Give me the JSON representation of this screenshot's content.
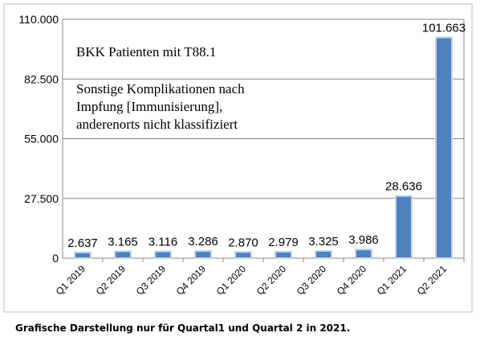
{
  "chart_data": {
    "type": "bar",
    "categories": [
      "Q1 2019",
      "Q2 2019",
      "Q3 2019",
      "Q4 2019",
      "Q1 2020",
      "Q2 2020",
      "Q3 2020",
      "Q4 2020",
      "Q1 2021",
      "Q2 2021"
    ],
    "values": [
      2637,
      3165,
      3116,
      3286,
      2870,
      2979,
      3325,
      3986,
      28636,
      101663
    ],
    "value_labels": [
      "2.637",
      "3.165",
      "3.116",
      "3.286",
      "2.870",
      "2.979",
      "3.325",
      "3.986",
      "28.636",
      "101.663"
    ],
    "color": "#4f81bd",
    "ylim": [
      0,
      110000
    ],
    "yticks": [
      0,
      {
        "value": 27500,
        "label": "27.500"
      },
      {
        "value": 55000,
        "label": "55.000"
      },
      {
        "value": 82500,
        "label": "82.500"
      },
      {
        "value": 110000,
        "label": "110.000"
      }
    ],
    "grid": true,
    "annotations": [
      "BKK Patienten mit T88.1",
      "Sonstige Komplikationen nach",
      "Impfung [Immunisierung],",
      "anderenorts nicht klassifiziert"
    ],
    "caption": "Grafische Darstellung nur für Quartal1 und Quartal 2 in 2021."
  }
}
